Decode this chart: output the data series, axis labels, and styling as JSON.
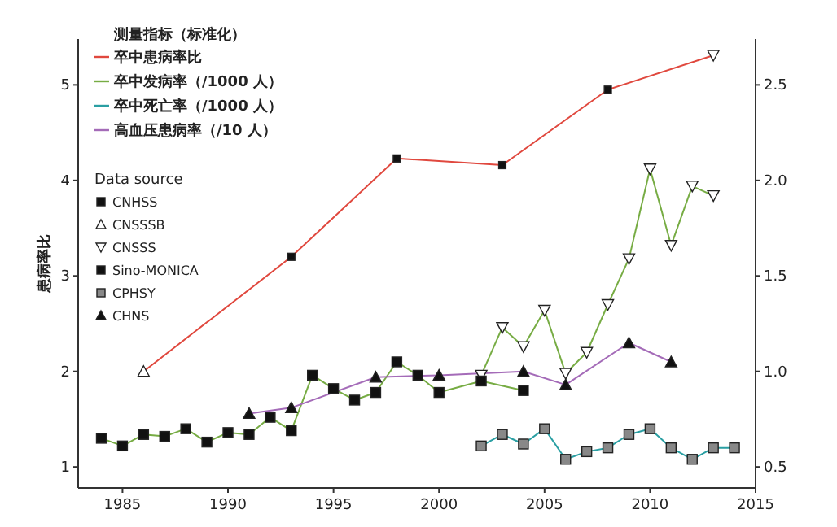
{
  "chart_data": {
    "type": "line",
    "ylabel": "患病率比",
    "legend_title": "测量指标（标准化）",
    "legend": "top left",
    "grid": false,
    "annotations": [
      "Data source"
    ],
    "xlim": [
      1982.9,
      2015
    ],
    "xticks": [
      1985,
      1990,
      1995,
      2000,
      2005,
      2010,
      2015
    ],
    "ylim": [
      0.78,
      5.48
    ],
    "yticks": [
      1,
      2,
      3,
      4,
      5
    ],
    "y2lim": [
      0.39,
      2.74
    ],
    "y2ticks": [
      {
        "value": 0.5,
        "label": "0.5"
      },
      {
        "value": 1,
        "label": "1.0"
      },
      {
        "value": 1.5,
        "label": "1.5"
      },
      {
        "value": 2,
        "label": "2.0"
      },
      {
        "value": 2.5,
        "label": "2.5"
      }
    ],
    "series": [
      {
        "name": "卒中患病率比",
        "color": "#e0483e",
        "marker": "none",
        "x": [
          1986,
          1993,
          1998,
          2003,
          2008,
          2013
        ],
        "values": [
          2.0,
          3.2,
          4.23,
          4.16,
          4.95,
          5.31
        ]
      },
      {
        "name": "卒中发病率（/1000 人）",
        "color": "#77ac44",
        "marker": "none",
        "axis": "y2",
        "x": [
          1984,
          1985,
          1986,
          1987,
          1988,
          1989,
          1990,
          1991,
          1992,
          1993,
          1994,
          1995,
          1996,
          1997,
          1998,
          1999,
          2000,
          2002,
          2004
        ],
        "values": [
          0.65,
          0.61,
          0.67,
          0.66,
          0.7,
          0.63,
          0.68,
          0.67,
          0.76,
          0.69,
          0.98,
          0.91,
          0.85,
          0.89,
          1.05,
          0.98,
          0.89,
          0.95,
          0.9
        ]
      },
      {
        "color": "#77ac44",
        "marker": "none",
        "axis": "y2",
        "x": [
          2002,
          2003,
          2004,
          2005,
          2006,
          2007,
          2008,
          2009,
          2010,
          2011,
          2012,
          2013
        ],
        "values": [
          0.98,
          1.23,
          1.13,
          1.32,
          0.99,
          1.1,
          1.35,
          1.59,
          2.06,
          1.66,
          1.97,
          1.92
        ]
      },
      {
        "name": "卒中死亡率（/1000 人）",
        "color": "#2a9fa3",
        "marker": "none",
        "axis": "y2",
        "x": [
          2002,
          2003,
          2004,
          2005,
          2006,
          2007,
          2008,
          2009,
          2010,
          2011,
          2012,
          2013,
          2014
        ],
        "values": [
          0.61,
          0.67,
          0.62,
          0.7,
          0.54,
          0.58,
          0.6,
          0.67,
          0.7,
          0.6,
          0.54,
          0.6,
          0.6
        ]
      },
      {
        "name": "高血压患病率（/10 人）",
        "color": "#a46bb8",
        "marker": "none",
        "axis": "y2",
        "x": [
          1991,
          1993,
          1997,
          2000,
          2004,
          2006,
          2009,
          2011
        ],
        "values": [
          0.78,
          0.81,
          0.97,
          0.98,
          1.0,
          0.93,
          1.15,
          1.05
        ]
      },
      {
        "name": "CNHSS",
        "type": "scatter",
        "color": "#111111",
        "marker": "square",
        "x": [
          1993,
          1998,
          2003,
          2008
        ],
        "values": [
          3.2,
          4.23,
          4.16,
          4.95
        ]
      },
      {
        "name": "CNSSSB",
        "type": "scatter",
        "color": "#ffffff",
        "marker": "triangle",
        "x": [
          1986
        ],
        "values": [
          2.0
        ]
      },
      {
        "name": "CNSSS",
        "type": "scatter",
        "color": "#ffffff",
        "marker": "triangle-down",
        "axis": "y2",
        "x": [
          2002,
          2003,
          2004,
          2005,
          2006,
          2007,
          2008,
          2009,
          2010,
          2011,
          2012,
          2013
        ],
        "values": [
          0.98,
          1.23,
          1.13,
          1.32,
          0.99,
          1.1,
          1.35,
          1.59,
          2.06,
          1.66,
          1.97,
          1.92
        ]
      },
      {
        "type": "scatter",
        "color": "#ffffff",
        "marker": "triangle-down",
        "x": [
          2013
        ],
        "values": [
          5.31
        ]
      },
      {
        "name": "Sino-MONICA",
        "type": "scatter",
        "color": "#111111",
        "marker": "square",
        "axis": "y2",
        "x": [
          1984,
          1985,
          1986,
          1987,
          1988,
          1989,
          1990,
          1991,
          1992,
          1993,
          1994,
          1995,
          1996,
          1997,
          1998,
          1999,
          2000,
          2002,
          2004
        ],
        "values": [
          0.65,
          0.61,
          0.67,
          0.66,
          0.7,
          0.63,
          0.68,
          0.67,
          0.76,
          0.69,
          0.98,
          0.91,
          0.85,
          0.89,
          1.05,
          0.98,
          0.89,
          0.95,
          0.9
        ]
      },
      {
        "name": "CPHSY",
        "type": "scatter",
        "color": "#888888",
        "marker": "square",
        "axis": "y2",
        "x": [
          2002,
          2003,
          2004,
          2005,
          2006,
          2007,
          2008,
          2009,
          2010,
          2011,
          2012,
          2013,
          2014
        ],
        "values": [
          0.61,
          0.67,
          0.62,
          0.7,
          0.54,
          0.58,
          0.6,
          0.67,
          0.7,
          0.6,
          0.54,
          0.6,
          0.6
        ]
      },
      {
        "name": "CHNS",
        "type": "scatter",
        "color": "#111111",
        "marker": "triangle",
        "axis": "y2",
        "x": [
          1991,
          1993,
          1997,
          2000,
          2004,
          2006,
          2009,
          2011
        ],
        "values": [
          0.78,
          0.81,
          0.97,
          0.98,
          1.0,
          0.93,
          1.15,
          1.05
        ]
      }
    ]
  }
}
